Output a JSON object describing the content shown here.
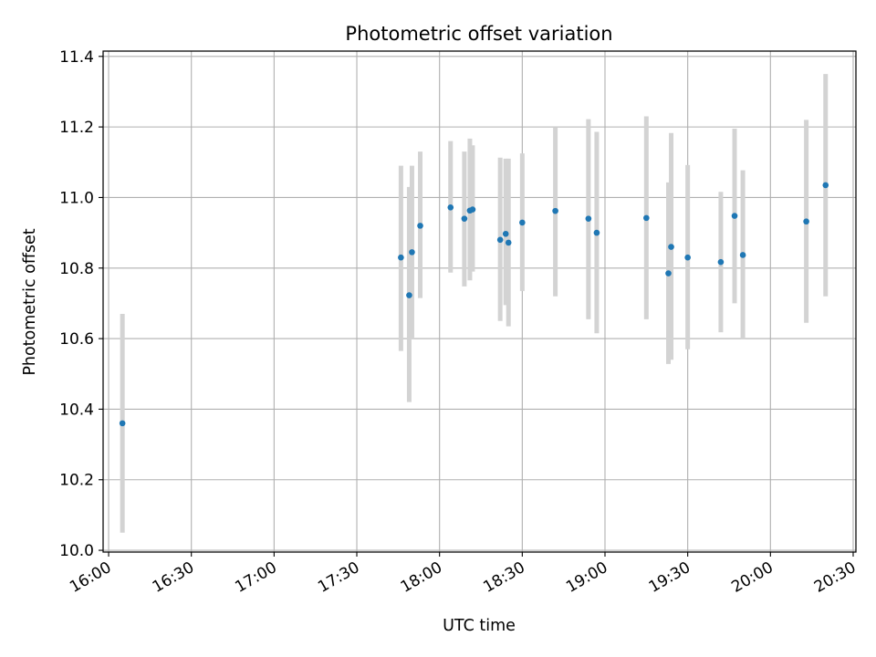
{
  "chart_data": {
    "type": "scatter",
    "title": "Photometric offset variation",
    "xlabel": "UTC time",
    "ylabel": "Photometric offset",
    "xlim": [
      "15:58",
      "20:31"
    ],
    "ylim": [
      9.995,
      11.415
    ],
    "x_ticks": [
      "16:00",
      "16:30",
      "17:00",
      "17:30",
      "18:00",
      "18:30",
      "19:00",
      "19:30",
      "20:00",
      "20:30"
    ],
    "y_ticks": [
      10.0,
      10.2,
      10.4,
      10.6,
      10.8,
      11.0,
      11.2,
      11.4
    ],
    "grid": true,
    "colors": {
      "points": "#1f77b4",
      "error_bars": "#d3d3d3",
      "grid": "#b0b0b0"
    },
    "series": [
      {
        "points": [
          {
            "x": "16:05",
            "y": 10.36,
            "ylow": 10.05,
            "yhigh": 10.67
          },
          {
            "x": "17:46",
            "y": 10.83,
            "ylow": 10.565,
            "yhigh": 11.09
          },
          {
            "x": "17:49",
            "y": 10.723,
            "ylow": 10.42,
            "yhigh": 11.03
          },
          {
            "x": "17:50",
            "y": 10.845,
            "ylow": 10.6,
            "yhigh": 11.09
          },
          {
            "x": "17:53",
            "y": 10.92,
            "ylow": 10.715,
            "yhigh": 11.13
          },
          {
            "x": "18:04",
            "y": 10.972,
            "ylow": 10.787,
            "yhigh": 11.16
          },
          {
            "x": "18:09",
            "y": 10.94,
            "ylow": 10.748,
            "yhigh": 11.13
          },
          {
            "x": "18:11",
            "y": 10.963,
            "ylow": 10.765,
            "yhigh": 11.167
          },
          {
            "x": "18:12",
            "y": 10.966,
            "ylow": 10.79,
            "yhigh": 11.148
          },
          {
            "x": "18:22",
            "y": 10.88,
            "ylow": 10.65,
            "yhigh": 11.113
          },
          {
            "x": "18:24",
            "y": 10.897,
            "ylow": 10.695,
            "yhigh": 11.11
          },
          {
            "x": "18:25",
            "y": 10.872,
            "ylow": 10.635,
            "yhigh": 11.11
          },
          {
            "x": "18:30",
            "y": 10.929,
            "ylow": 10.735,
            "yhigh": 11.125
          },
          {
            "x": "18:42",
            "y": 10.962,
            "ylow": 10.72,
            "yhigh": 11.2
          },
          {
            "x": "18:54",
            "y": 10.94,
            "ylow": 10.655,
            "yhigh": 11.222
          },
          {
            "x": "18:57",
            "y": 10.9,
            "ylow": 10.615,
            "yhigh": 11.186
          },
          {
            "x": "19:15",
            "y": 10.942,
            "ylow": 10.655,
            "yhigh": 11.23
          },
          {
            "x": "19:23",
            "y": 10.785,
            "ylow": 10.528,
            "yhigh": 11.043
          },
          {
            "x": "19:24",
            "y": 10.86,
            "ylow": 10.54,
            "yhigh": 11.183
          },
          {
            "x": "19:30",
            "y": 10.83,
            "ylow": 10.57,
            "yhigh": 11.092
          },
          {
            "x": "19:42",
            "y": 10.817,
            "ylow": 10.618,
            "yhigh": 11.016
          },
          {
            "x": "19:47",
            "y": 10.948,
            "ylow": 10.7,
            "yhigh": 11.195
          },
          {
            "x": "19:50",
            "y": 10.837,
            "ylow": 10.6,
            "yhigh": 11.077
          },
          {
            "x": "20:13",
            "y": 10.932,
            "ylow": 10.645,
            "yhigh": 11.22
          },
          {
            "x": "20:20",
            "y": 11.035,
            "ylow": 10.72,
            "yhigh": 11.35
          }
        ]
      }
    ]
  }
}
